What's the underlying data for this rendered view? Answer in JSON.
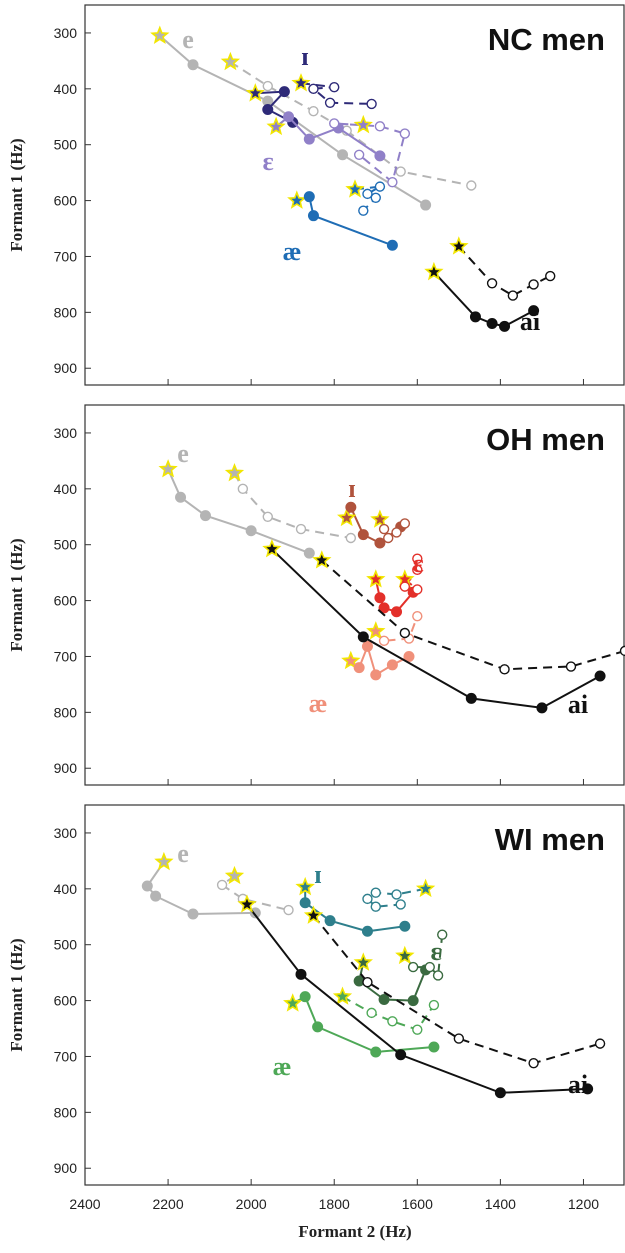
{
  "chart_data": {
    "type": "line",
    "x_axis": {
      "label": "Formant 2 (Hz)",
      "ticks": [
        "2400",
        "2200",
        "2000",
        "1800",
        "1600",
        "1400",
        "1200"
      ],
      "range": [
        2400,
        1100
      ],
      "reversed": true
    },
    "y_axis": {
      "label": "Formant 1 (Hz)",
      "ticks": [
        "300",
        "400",
        "500",
        "600",
        "700",
        "800",
        "900"
      ],
      "range": [
        250,
        930
      ],
      "reversed": true
    },
    "grid": false,
    "panels": [
      {
        "title": "NC men",
        "vowels": [
          {
            "label": "e",
            "color": "#b4b4b4",
            "solid": [
              [
                2220,
                305
              ],
              [
                2140,
                357
              ],
              [
                1960,
                422
              ],
              [
                1780,
                518
              ],
              [
                1580,
                608
              ]
            ],
            "dashed": [
              [
                2050,
                352
              ],
              [
                1960,
                395
              ],
              [
                1850,
                440
              ],
              [
                1770,
                475
              ],
              [
                1640,
                548
              ],
              [
                1470,
                573
              ]
            ]
          },
          {
            "label": "ɪ",
            "color": "#2e2a78",
            "solid": [
              [
                1990,
                408
              ],
              [
                1920,
                405
              ],
              [
                1960,
                437
              ],
              [
                1900,
                460
              ]
            ],
            "dashed": [
              [
                1880,
                390
              ],
              [
                1800,
                397
              ],
              [
                1850,
                400
              ],
              [
                1810,
                425
              ],
              [
                1710,
                427
              ]
            ]
          },
          {
            "label": "ɛ",
            "color": "#9080c8",
            "solid": [
              [
                1940,
                468
              ],
              [
                1910,
                450
              ],
              [
                1860,
                490
              ],
              [
                1790,
                470
              ],
              [
                1690,
                520
              ]
            ],
            "dashed": [
              [
                1730,
                465
              ],
              [
                1800,
                462
              ],
              [
                1690,
                467
              ],
              [
                1630,
                480
              ],
              [
                1660,
                567
              ],
              [
                1740,
                518
              ]
            ]
          },
          {
            "label": "æ",
            "color": "#1f6db5",
            "solid": [
              [
                1890,
                600
              ],
              [
                1860,
                593
              ],
              [
                1850,
                627
              ],
              [
                1660,
                680
              ]
            ],
            "dashed": [
              [
                1750,
                580
              ],
              [
                1690,
                575
              ],
              [
                1720,
                588
              ],
              [
                1700,
                595
              ],
              [
                1730,
                618
              ]
            ]
          },
          {
            "label": "ai",
            "color": "#111111",
            "solid": [
              [
                1560,
                728
              ],
              [
                1460,
                808
              ],
              [
                1420,
                820
              ],
              [
                1390,
                825
              ],
              [
                1320,
                797
              ]
            ],
            "dashed": [
              [
                1500,
                682
              ],
              [
                1420,
                748
              ],
              [
                1370,
                770
              ],
              [
                1320,
                750
              ],
              [
                1280,
                735
              ]
            ]
          }
        ]
      },
      {
        "title": "OH men",
        "vowels": [
          {
            "label": "e",
            "color": "#b4b4b4",
            "solid": [
              [
                2200,
                365
              ],
              [
                2170,
                415
              ],
              [
                2110,
                448
              ],
              [
                2000,
                475
              ],
              [
                1860,
                515
              ]
            ],
            "dashed": [
              [
                2040,
                372
              ],
              [
                2020,
                400
              ],
              [
                1960,
                450
              ],
              [
                1880,
                472
              ],
              [
                1760,
                488
              ]
            ]
          },
          {
            "label": "ɪ",
            "color": "#b0533c",
            "solid": [
              [
                1770,
                452
              ],
              [
                1760,
                433
              ],
              [
                1730,
                482
              ],
              [
                1690,
                497
              ],
              [
                1640,
                468
              ]
            ],
            "dashed": [
              [
                1690,
                455
              ],
              [
                1680,
                472
              ],
              [
                1670,
                488
              ],
              [
                1650,
                478
              ],
              [
                1630,
                462
              ]
            ]
          },
          {
            "label": "ɛ",
            "color": "#e3302a",
            "solid": [
              [
                1700,
                562
              ],
              [
                1690,
                595
              ],
              [
                1680,
                613
              ],
              [
                1650,
                620
              ],
              [
                1610,
                585
              ]
            ],
            "dashed": [
              [
                1630,
                562
              ],
              [
                1600,
                580
              ],
              [
                1630,
                575
              ],
              [
                1600,
                545
              ],
              [
                1600,
                525
              ]
            ]
          },
          {
            "label": "æ",
            "color": "#f0907a",
            "solid": [
              [
                1760,
                708
              ],
              [
                1740,
                720
              ],
              [
                1720,
                682
              ],
              [
                1700,
                733
              ],
              [
                1660,
                715
              ],
              [
                1620,
                700
              ]
            ],
            "dashed": [
              [
                1700,
                655
              ],
              [
                1680,
                672
              ],
              [
                1620,
                668
              ],
              [
                1600,
                628
              ]
            ]
          },
          {
            "label": "ai",
            "color": "#111111",
            "solid": [
              [
                1950,
                508
              ],
              [
                1730,
                665
              ],
              [
                1470,
                775
              ],
              [
                1300,
                792
              ],
              [
                1160,
                735
              ]
            ],
            "dashed": [
              [
                1830,
                528
              ],
              [
                1630,
                658
              ],
              [
                1390,
                723
              ],
              [
                1230,
                718
              ],
              [
                1100,
                690
              ]
            ]
          }
        ]
      },
      {
        "title": "WI men",
        "vowels": [
          {
            "label": "e",
            "color": "#b4b4b4",
            "solid": [
              [
                2210,
                352
              ],
              [
                2250,
                395
              ],
              [
                2230,
                413
              ],
              [
                2140,
                445
              ],
              [
                1990,
                443
              ]
            ],
            "dashed": [
              [
                2040,
                377
              ],
              [
                2070,
                393
              ],
              [
                2020,
                418
              ],
              [
                1910,
                438
              ]
            ]
          },
          {
            "label": "ɪ",
            "color": "#2e7f8c",
            "solid": [
              [
                1870,
                397
              ],
              [
                1870,
                425
              ],
              [
                1810,
                457
              ],
              [
                1720,
                476
              ],
              [
                1630,
                467
              ]
            ],
            "dashed": [
              [
                1580,
                400
              ],
              [
                1650,
                410
              ],
              [
                1700,
                407
              ],
              [
                1720,
                418
              ],
              [
                1700,
                432
              ],
              [
                1640,
                428
              ]
            ]
          },
          {
            "label": "ɛ",
            "color": "#3a6a40",
            "solid": [
              [
                1730,
                532
              ],
              [
                1740,
                565
              ],
              [
                1680,
                598
              ],
              [
                1610,
                600
              ],
              [
                1580,
                545
              ]
            ],
            "dashed": [
              [
                1630,
                520
              ],
              [
                1610,
                540
              ],
              [
                1570,
                540
              ],
              [
                1550,
                555
              ],
              [
                1540,
                482
              ]
            ]
          },
          {
            "label": "æ",
            "color": "#4ea857",
            "solid": [
              [
                1900,
                605
              ],
              [
                1870,
                593
              ],
              [
                1840,
                647
              ],
              [
                1700,
                692
              ],
              [
                1560,
                683
              ]
            ],
            "dashed": [
              [
                1780,
                593
              ],
              [
                1710,
                622
              ],
              [
                1660,
                637
              ],
              [
                1600,
                652
              ],
              [
                1560,
                608
              ]
            ]
          },
          {
            "label": "ai",
            "color": "#111111",
            "solid": [
              [
                2010,
                428
              ],
              [
                1880,
                553
              ],
              [
                1640,
                697
              ],
              [
                1400,
                765
              ],
              [
                1190,
                758
              ]
            ],
            "dashed": [
              [
                1850,
                448
              ],
              [
                1720,
                567
              ],
              [
                1500,
                668
              ],
              [
                1320,
                712
              ],
              [
                1160,
                677
              ]
            ]
          }
        ]
      }
    ]
  }
}
